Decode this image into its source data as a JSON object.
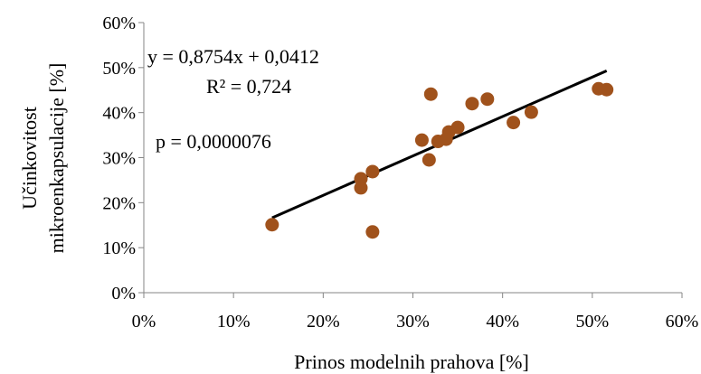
{
  "chart_data": {
    "type": "scatter",
    "title": "",
    "xlabel": "Prinos modelnih prahova  [%]",
    "ylabel_lines": [
      "Učinkovitost",
      "mikroenkapsulacije [%]"
    ],
    "xlim": [
      0,
      0.6
    ],
    "ylim": [
      0,
      0.6
    ],
    "x_ticks": [
      0,
      0.1,
      0.2,
      0.3,
      0.4,
      0.5,
      0.6
    ],
    "x_tick_labels": [
      "0%",
      "10%",
      "20%",
      "30%",
      "40%",
      "50%",
      "60%"
    ],
    "y_ticks": [
      0,
      0.1,
      0.2,
      0.3,
      0.4,
      0.5,
      0.6
    ],
    "y_tick_labels": [
      "0%",
      "10%",
      "20%",
      "30%",
      "40%",
      "50%",
      "60%"
    ],
    "grid": false,
    "legend": "none",
    "point_color": "#a0521c",
    "line_color": "#000000",
    "points": [
      {
        "x": 0.143,
        "y": 0.151
      },
      {
        "x": 0.242,
        "y": 0.253
      },
      {
        "x": 0.242,
        "y": 0.233
      },
      {
        "x": 0.255,
        "y": 0.269
      },
      {
        "x": 0.255,
        "y": 0.135
      },
      {
        "x": 0.31,
        "y": 0.339
      },
      {
        "x": 0.318,
        "y": 0.295
      },
      {
        "x": 0.32,
        "y": 0.441
      },
      {
        "x": 0.328,
        "y": 0.336
      },
      {
        "x": 0.337,
        "y": 0.341
      },
      {
        "x": 0.34,
        "y": 0.357
      },
      {
        "x": 0.35,
        "y": 0.367
      },
      {
        "x": 0.366,
        "y": 0.42
      },
      {
        "x": 0.383,
        "y": 0.43
      },
      {
        "x": 0.412,
        "y": 0.378
      },
      {
        "x": 0.432,
        "y": 0.401
      },
      {
        "x": 0.507,
        "y": 0.453
      },
      {
        "x": 0.516,
        "y": 0.451
      }
    ],
    "trendline": {
      "slope": 0.8754,
      "intercept": 0.0412,
      "x_range": [
        0.143,
        0.516
      ],
      "equation_label": "y = 0,8754x + 0,0412",
      "r2_label": "R² = 0,724"
    },
    "annotations": {
      "p_value": "p = 0,0000076"
    }
  }
}
